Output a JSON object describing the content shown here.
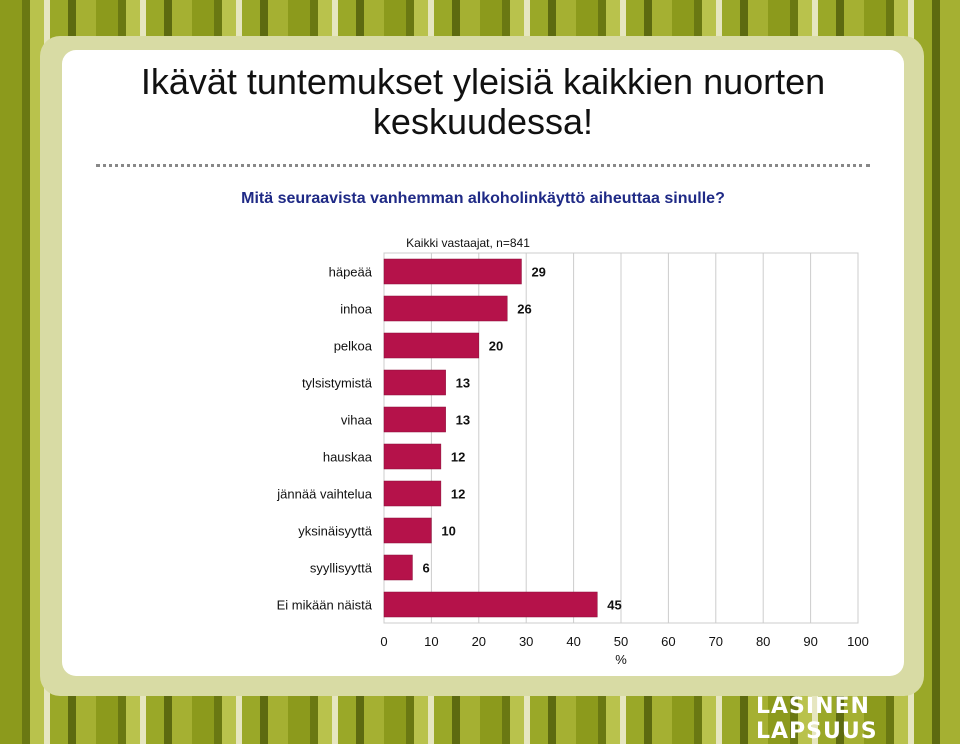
{
  "slide": {
    "title_line1": "Ikävät tuntemukset yleisiä kaikkien nuorten",
    "title_line2": "keskuudessa!",
    "question": "Mitä seuraavista vanhemman alkoholinkäyttö aiheuttaa sinulle?",
    "brand": "LASINEN LAPSUUS"
  },
  "colors": {
    "bar": "#b5124a",
    "question": "#1f2a86",
    "grid": "#cccccc"
  },
  "chart_data": {
    "type": "bar",
    "orientation": "horizontal",
    "title": "Kaikki vastaajat, n=841",
    "categories": [
      "häpeää",
      "inhoa",
      "pelkoa",
      "tylsistymistä",
      "vihaa",
      "hauskaa",
      "jännää vaihtelua",
      "yksinäisyyttä",
      "syyllisyyttä",
      "Ei mikään näistä"
    ],
    "values": [
      29,
      26,
      20,
      13,
      13,
      12,
      12,
      10,
      6,
      45
    ],
    "xlabel": "%",
    "xlim": [
      0,
      100
    ],
    "xticks": [
      "0",
      "10",
      "20",
      "30",
      "40",
      "50",
      "60",
      "70",
      "80",
      "90",
      "100"
    ],
    "grid": true,
    "data_labels": true
  }
}
